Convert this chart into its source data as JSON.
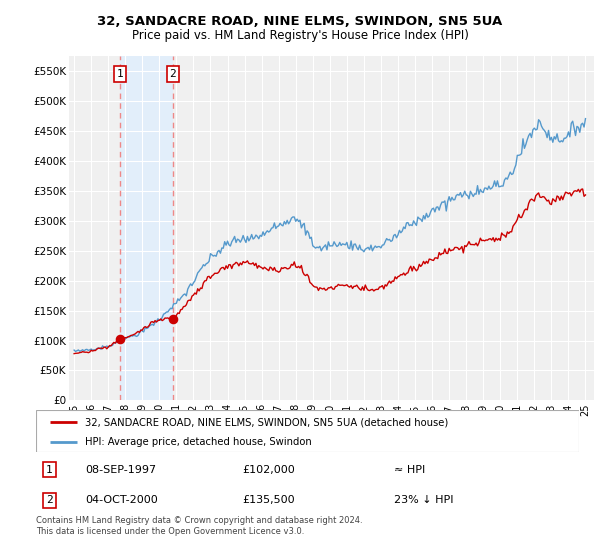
{
  "title1": "32, SANDACRE ROAD, NINE ELMS, SWINDON, SN5 5UA",
  "title2": "Price paid vs. HM Land Registry's House Price Index (HPI)",
  "ylabel_ticks": [
    "£0",
    "£50K",
    "£100K",
    "£150K",
    "£200K",
    "£250K",
    "£300K",
    "£350K",
    "£400K",
    "£450K",
    "£500K",
    "£550K"
  ],
  "ytick_vals": [
    0,
    50000,
    100000,
    150000,
    200000,
    250000,
    300000,
    350000,
    400000,
    450000,
    500000,
    550000
  ],
  "ylim": [
    0,
    575000
  ],
  "sale1_year": 1997.708,
  "sale1_price": 102000,
  "sale1_label": "≈ HPI",
  "sale2_year": 2000.792,
  "sale2_price": 135500,
  "sale2_label": "23% ↓ HPI",
  "sale1_date": "08-SEP-1997",
  "sale2_date": "04-OCT-2000",
  "legend_line1": "32, SANDACRE ROAD, NINE ELMS, SWINDON, SN5 5UA (detached house)",
  "legend_line2": "HPI: Average price, detached house, Swindon",
  "footer": "Contains HM Land Registry data © Crown copyright and database right 2024.\nThis data is licensed under the Open Government Licence v3.0.",
  "line_color_sale": "#cc0000",
  "line_color_hpi": "#5599cc",
  "dot_color": "#cc0000",
  "vline_color": "#ee8888",
  "shade_color": "#ddeeff",
  "box_color": "#cc0000",
  "background_color": "#f0f0f0",
  "grid_color": "#ffffff",
  "xlim_left": 1994.7,
  "xlim_right": 2025.5
}
